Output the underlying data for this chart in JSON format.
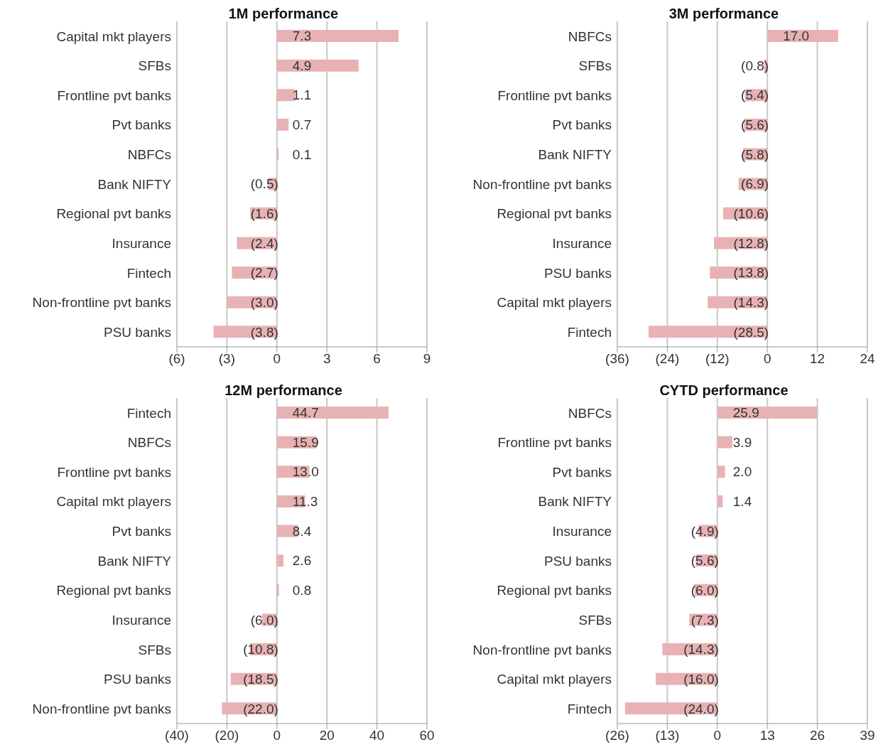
{
  "chart_data": [
    {
      "type": "bar",
      "orientation": "horizontal",
      "title": "1M performance",
      "categories": [
        "Capital mkt players",
        "SFBs",
        "Frontline pvt banks",
        "Pvt banks",
        "NBFCs",
        "Bank NIFTY",
        "Regional pvt banks",
        "Insurance",
        "Fintech",
        "Non-frontline pvt banks",
        "PSU banks"
      ],
      "values": [
        7.3,
        4.9,
        1.1,
        0.7,
        0.1,
        -0.5,
        -1.6,
        -2.4,
        -2.7,
        -3.0,
        -3.8
      ],
      "value_labels": [
        "7.3",
        "4.9",
        "1.1",
        "0.7",
        "0.1",
        "(0.5)",
        "(1.6)",
        "(2.4)",
        "(2.7)",
        "(3.0)",
        "(3.8)"
      ],
      "color": "#e8b2b4",
      "xlim": [
        -6,
        9
      ],
      "xticks": [
        {
          "value": -6,
          "label": "(6)"
        },
        {
          "value": -3,
          "label": "(3)"
        },
        0,
        3,
        6,
        9
      ],
      "grid": "x",
      "legend": false
    },
    {
      "type": "bar",
      "orientation": "horizontal",
      "title": "3M performance",
      "categories": [
        "NBFCs",
        "SFBs",
        "Frontline pvt banks",
        "Pvt banks",
        "Bank NIFTY",
        "Non-frontline pvt banks",
        "Regional pvt banks",
        "Insurance",
        "PSU banks",
        "Capital mkt players",
        "Fintech"
      ],
      "values": [
        17.0,
        -0.8,
        -5.4,
        -5.6,
        -5.8,
        -6.9,
        -10.6,
        -12.8,
        -13.8,
        -14.3,
        -28.5
      ],
      "value_labels": [
        "17.0",
        "(0.8)",
        "(5.4)",
        "(5.6)",
        "(5.8)",
        "(6.9)",
        "(10.6)",
        "(12.8)",
        "(13.8)",
        "(14.3)",
        "(28.5)"
      ],
      "color": "#e8b2b4",
      "xlim": [
        -36,
        24
      ],
      "xticks": [
        {
          "value": -36,
          "label": "(36)"
        },
        {
          "value": -24,
          "label": "(24)"
        },
        {
          "value": -12,
          "label": "(12)"
        },
        0,
        12,
        24
      ],
      "grid": "x",
      "legend": false
    },
    {
      "type": "bar",
      "orientation": "horizontal",
      "title": "12M performance",
      "categories": [
        "Fintech",
        "NBFCs",
        "Frontline pvt banks",
        "Capital mkt players",
        "Pvt banks",
        "Bank NIFTY",
        "Regional pvt banks",
        "Insurance",
        "SFBs",
        "PSU banks",
        "Non-frontline pvt banks"
      ],
      "values": [
        44.7,
        15.9,
        13.0,
        11.3,
        8.4,
        2.6,
        0.8,
        -6.0,
        -10.8,
        -18.5,
        -22.0
      ],
      "value_labels": [
        "44.7",
        "15.9",
        "13.0",
        "11.3",
        "8.4",
        "2.6",
        "0.8",
        "(6.0)",
        "(10.8)",
        "(18.5)",
        "(22.0)"
      ],
      "color": "#e8b2b4",
      "xlim": [
        -40,
        60
      ],
      "xticks": [
        {
          "value": -40,
          "label": "(40)"
        },
        {
          "value": -20,
          "label": "(20)"
        },
        0,
        20,
        40,
        60
      ],
      "grid": "x",
      "legend": false
    },
    {
      "type": "bar",
      "orientation": "horizontal",
      "title": "CYTD performance",
      "categories": [
        "NBFCs",
        "Frontline pvt banks",
        "Pvt banks",
        "Bank NIFTY",
        "Insurance",
        "PSU banks",
        "Regional pvt banks",
        "SFBs",
        "Non-frontline pvt banks",
        "Capital mkt players",
        "Fintech"
      ],
      "values": [
        25.9,
        3.9,
        2.0,
        1.4,
        -4.9,
        -5.6,
        -6.0,
        -7.3,
        -14.3,
        -16.0,
        -24.0
      ],
      "value_labels": [
        "25.9",
        "3.9",
        "2.0",
        "1.4",
        "(4.9)",
        "(5.6)",
        "(6.0)",
        "(7.3)",
        "(14.3)",
        "(16.0)",
        "(24.0)"
      ],
      "color": "#e8b2b4",
      "xlim": [
        -26,
        39
      ],
      "xticks": [
        {
          "value": -26,
          "label": "(26)"
        },
        {
          "value": -13,
          "label": "(13)"
        },
        0,
        13,
        26,
        39
      ],
      "grid": "x",
      "legend": false
    }
  ]
}
